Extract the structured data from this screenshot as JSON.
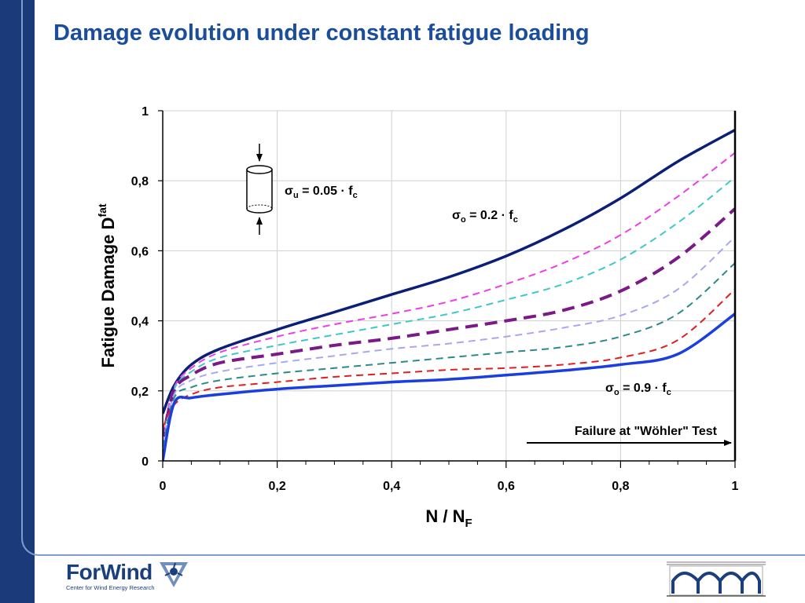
{
  "slide": {
    "title": "Damage evolution under constant fatigue loading"
  },
  "footer": {
    "logo_name": "ForWind",
    "logo_subtitle": "Center for Wind Energy Research"
  },
  "colors": {
    "title": "#1a4d9c",
    "left_bar": "#1b3a7a",
    "logo": "#1b3f7d"
  },
  "chart_data": {
    "type": "line",
    "title": "",
    "xlabel": "N / N",
    "xlabel_sub": "F",
    "ylabel": "Fatigue Damage   D",
    "ylabel_sup": "fat",
    "xlim": [
      0,
      1
    ],
    "ylim": [
      0,
      1
    ],
    "grid": true,
    "x_ticks": [
      "0",
      "0,2",
      "0,4",
      "0,6",
      "0,8",
      "1"
    ],
    "y_ticks": [
      "0",
      "0,2",
      "0,4",
      "0,6",
      "0,8",
      "1"
    ],
    "x": [
      0,
      0.02,
      0.05,
      0.1,
      0.2,
      0.3,
      0.4,
      0.5,
      0.6,
      0.7,
      0.8,
      0.9,
      1.0
    ],
    "series": [
      {
        "color": "#0b1f77",
        "style": "solid",
        "width": 3.5,
        "values": [
          0.135,
          0.215,
          0.275,
          0.32,
          0.375,
          0.425,
          0.475,
          0.525,
          0.585,
          0.66,
          0.75,
          0.855,
          0.945
        ]
      },
      {
        "color": "#ee3de6",
        "style": "dash",
        "width": 2,
        "values": [
          0.08,
          0.21,
          0.265,
          0.31,
          0.355,
          0.39,
          0.42,
          0.455,
          0.505,
          0.565,
          0.645,
          0.755,
          0.88
        ]
      },
      {
        "color": "#3dc8c8",
        "style": "dash",
        "width": 2,
        "values": [
          0.07,
          0.205,
          0.255,
          0.295,
          0.33,
          0.36,
          0.39,
          0.42,
          0.46,
          0.505,
          0.575,
          0.68,
          0.81
        ]
      },
      {
        "color": "#7b1a86",
        "style": "longdash",
        "width": 4,
        "values": [
          0.06,
          0.2,
          0.245,
          0.28,
          0.305,
          0.33,
          0.35,
          0.375,
          0.4,
          0.43,
          0.485,
          0.58,
          0.72
        ]
      },
      {
        "color": "#a8a8f0",
        "style": "dash",
        "width": 2,
        "values": [
          0.05,
          0.19,
          0.23,
          0.255,
          0.28,
          0.3,
          0.32,
          0.335,
          0.355,
          0.38,
          0.415,
          0.49,
          0.64
        ]
      },
      {
        "color": "#2a8a88",
        "style": "dash",
        "width": 2,
        "values": [
          0.04,
          0.18,
          0.21,
          0.23,
          0.25,
          0.265,
          0.28,
          0.295,
          0.31,
          0.325,
          0.355,
          0.42,
          0.565
        ]
      },
      {
        "color": "#e02020",
        "style": "dash",
        "width": 2,
        "values": [
          0.095,
          0.16,
          0.19,
          0.21,
          0.225,
          0.24,
          0.25,
          0.26,
          0.265,
          0.275,
          0.295,
          0.345,
          0.49
        ]
      },
      {
        "color": "#1a3ee0",
        "style": "solid",
        "width": 3.5,
        "values": [
          0.0,
          0.165,
          0.18,
          0.19,
          0.205,
          0.215,
          0.225,
          0.233,
          0.245,
          0.258,
          0.275,
          0.305,
          0.42
        ]
      }
    ],
    "annotations": {
      "sigma_u": {
        "symbol": "σ",
        "sub": "u",
        "text": " = 0.05 · f",
        "sub2": "c"
      },
      "sigma_low": {
        "symbol": "σ",
        "sub": "o",
        "text": " = 0.2 · f",
        "sub2": "c"
      },
      "sigma_high": {
        "symbol": "σ",
        "sub": "o",
        "text": " = 0.9 · f",
        "sub2": "c"
      },
      "failure": "Failure at \"Wöhler\" Test"
    }
  }
}
